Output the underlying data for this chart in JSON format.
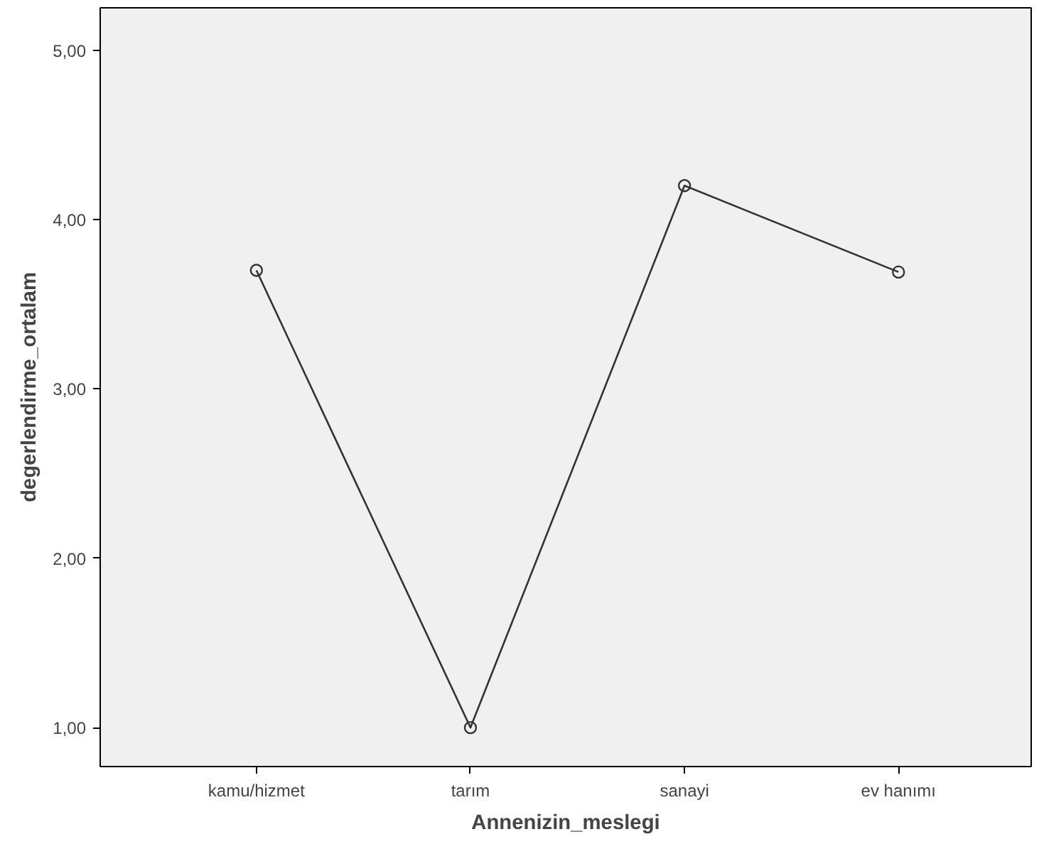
{
  "chart_data": {
    "type": "line",
    "xlabel": "Annenizin_meslegi",
    "ylabel": "degerlendirme_ortalam",
    "categories": [
      "kamu/hizmet",
      "tarım",
      "sanayi",
      "ev hanımı"
    ],
    "values": [
      3.7,
      1.0,
      4.2,
      3.69
    ],
    "color": "#333333",
    "marker": "circle",
    "line_style": "solid",
    "ylim": [
      0.77,
      5.25
    ],
    "yticks": [
      {
        "value": 1,
        "label": "1,00"
      },
      {
        "value": 2,
        "label": "2,00"
      },
      {
        "value": 3,
        "label": "3,00"
      },
      {
        "value": 4,
        "label": "4,00"
      },
      {
        "value": 5,
        "label": "5,00"
      }
    ],
    "grid": false
  }
}
